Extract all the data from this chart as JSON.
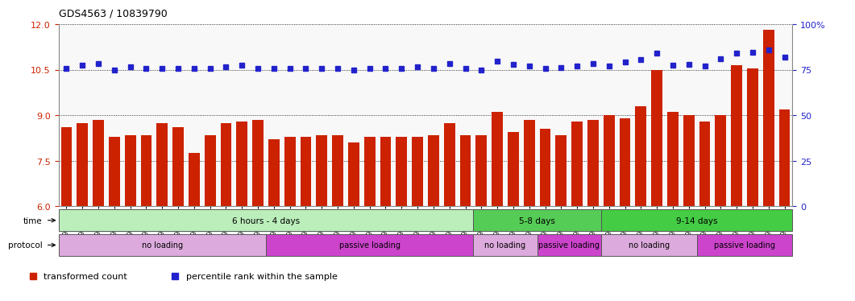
{
  "title": "GDS4563 / 10839790",
  "samples": [
    "GSM930471",
    "GSM930472",
    "GSM930473",
    "GSM930474",
    "GSM930475",
    "GSM930476",
    "GSM930477",
    "GSM930478",
    "GSM930479",
    "GSM930480",
    "GSM930481",
    "GSM930482",
    "GSM930483",
    "GSM930494",
    "GSM930495",
    "GSM930496",
    "GSM930497",
    "GSM930498",
    "GSM930499",
    "GSM930500",
    "GSM930501",
    "GSM930502",
    "GSM930503",
    "GSM930504",
    "GSM930505",
    "GSM930506",
    "GSM930484",
    "GSM930485",
    "GSM930486",
    "GSM930487",
    "GSM930507",
    "GSM930508",
    "GSM930509",
    "GSM930510",
    "GSM930488",
    "GSM930489",
    "GSM930490",
    "GSM930491",
    "GSM930492",
    "GSM930493",
    "GSM930511",
    "GSM930512",
    "GSM930513",
    "GSM930514",
    "GSM930515",
    "GSM930516"
  ],
  "bar_values": [
    8.6,
    8.75,
    8.85,
    8.3,
    8.35,
    8.35,
    8.75,
    8.6,
    7.75,
    8.35,
    8.75,
    8.8,
    8.85,
    8.2,
    8.3,
    8.3,
    8.35,
    8.35,
    8.1,
    8.3,
    8.3,
    8.3,
    8.3,
    8.35,
    8.75,
    8.35,
    8.35,
    9.1,
    8.45,
    8.85,
    8.55,
    8.35,
    8.8,
    8.85,
    9.0,
    8.9,
    9.3,
    10.5,
    9.1,
    9.0,
    8.8,
    9.0,
    10.65,
    10.55,
    11.8,
    9.2
  ],
  "dot_values": [
    10.55,
    10.65,
    10.7,
    10.5,
    10.6,
    10.55,
    10.55,
    10.55,
    10.55,
    10.55,
    10.6,
    10.65,
    10.55,
    10.55,
    10.55,
    10.55,
    10.55,
    10.55,
    10.5,
    10.55,
    10.55,
    10.55,
    10.6,
    10.55,
    10.7,
    10.55,
    10.48,
    10.78,
    10.68,
    10.62,
    10.55,
    10.58,
    10.62,
    10.7,
    10.62,
    10.75,
    10.82,
    11.05,
    10.65,
    10.68,
    10.62,
    10.85,
    11.05,
    11.08,
    11.15,
    10.9
  ],
  "ylim_left": [
    6,
    12
  ],
  "ylim_right": [
    0,
    100
  ],
  "yticks_left": [
    6,
    7.5,
    9,
    10.5,
    12
  ],
  "yticks_right": [
    0,
    25,
    50,
    75,
    100
  ],
  "bar_color": "#cc2200",
  "dot_color": "#2222cc",
  "bg_color": "#f0f0f0",
  "time_groups": [
    {
      "label": "6 hours - 4 days",
      "start": 0,
      "end": 26,
      "color": "#bbeebb"
    },
    {
      "label": "5-8 days",
      "start": 26,
      "end": 34,
      "color": "#55cc55"
    },
    {
      "label": "9-14 days",
      "start": 34,
      "end": 46,
      "color": "#44cc44"
    }
  ],
  "protocol_groups": [
    {
      "label": "no loading",
      "start": 0,
      "end": 13,
      "color": "#ddaadd"
    },
    {
      "label": "passive loading",
      "start": 13,
      "end": 26,
      "color": "#cc44cc"
    },
    {
      "label": "no loading",
      "start": 26,
      "end": 30,
      "color": "#ddaadd"
    },
    {
      "label": "passive loading",
      "start": 30,
      "end": 34,
      "color": "#cc44cc"
    },
    {
      "label": "no loading",
      "start": 34,
      "end": 40,
      "color": "#ddaadd"
    },
    {
      "label": "passive loading",
      "start": 40,
      "end": 46,
      "color": "#cc44cc"
    }
  ],
  "legend_items": [
    {
      "label": "transformed count",
      "color": "#cc2200"
    },
    {
      "label": "percentile rank within the sample",
      "color": "#2222cc"
    }
  ]
}
